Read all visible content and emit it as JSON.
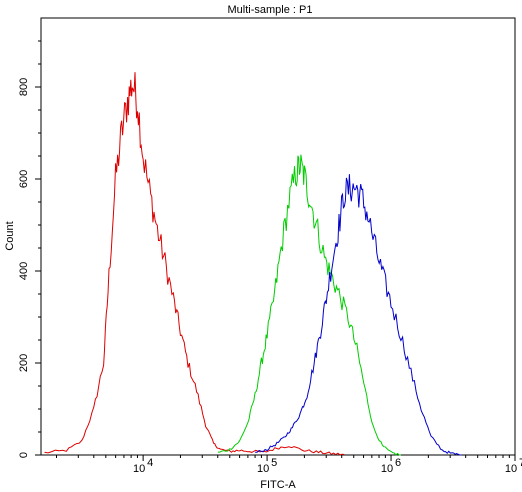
{
  "chart_data": {
    "type": "line",
    "title": "Multi-sample : P1",
    "xlabel": "FITC-A",
    "ylabel": "Count",
    "xscale": "log",
    "xlim": [
      1500,
      10000000
    ],
    "ylim": [
      0,
      950
    ],
    "grid": false,
    "legend": "none",
    "y_ticks": [
      0,
      200,
      400,
      600,
      800
    ],
    "y_tick_labels": [
      "0",
      "200",
      "400",
      "600",
      "800"
    ],
    "x_ticks": [
      {
        "value": 10000,
        "base": "10",
        "exp": "4"
      },
      {
        "value": 100000,
        "base": "10",
        "exp": "5"
      },
      {
        "value": 1000000,
        "base": "10",
        "exp": "6"
      },
      {
        "value": 10000000,
        "base": "10",
        "exp": "7"
      }
    ],
    "series": [
      {
        "color": "#dd0000",
        "x": [
          1600,
          2400,
          3200,
          4000,
          4800,
          5300,
          6000,
          6700,
          7500,
          8200,
          9000,
          10000,
          11500,
          13000,
          15000,
          17500,
          20000,
          23000,
          27000,
          32000,
          37000,
          42000,
          50000,
          60000,
          75000,
          95000,
          120000,
          150000,
          200000,
          260000,
          330000,
          420000
        ],
        "y": [
          5,
          10,
          30,
          100,
          200,
          390,
          600,
          700,
          770,
          810,
          770,
          650,
          560,
          490,
          420,
          340,
          270,
          200,
          140,
          65,
          25,
          12,
          8,
          10,
          8,
          6,
          15,
          20,
          10,
          6,
          3,
          1
        ]
      },
      {
        "color": "#00cc00",
        "x": [
          40000,
          50000,
          60000,
          70000,
          80000,
          90000,
          100000,
          115000,
          130000,
          150000,
          170000,
          185000,
          200000,
          220000,
          250000,
          290000,
          330000,
          380000,
          450000,
          530000,
          620000,
          720000,
          850000,
          1000000,
          1200000
        ],
        "y": [
          5,
          12,
          30,
          70,
          130,
          200,
          260,
          350,
          450,
          550,
          610,
          630,
          605,
          560,
          500,
          430,
          390,
          350,
          300,
          230,
          140,
          60,
          20,
          5,
          0
        ]
      },
      {
        "color": "#0000cc",
        "x": [
          80000,
          100000,
          120000,
          140000,
          160000,
          185000,
          210000,
          240000,
          270000,
          300000,
          340000,
          380000,
          420000,
          470000,
          520000,
          580000,
          650000,
          750000,
          860000,
          1000000,
          1200000,
          1450000,
          1750000,
          2100000,
          2600000,
          3100000,
          3700000
        ],
        "y": [
          5,
          12,
          25,
          40,
          60,
          90,
          130,
          200,
          270,
          340,
          430,
          500,
          570,
          580,
          580,
          560,
          520,
          450,
          390,
          330,
          260,
          180,
          100,
          40,
          10,
          3,
          0
        ]
      }
    ]
  }
}
